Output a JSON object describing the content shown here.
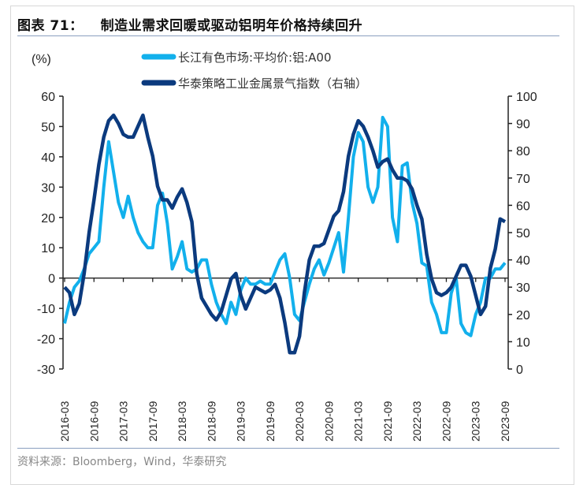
{
  "title": {
    "label": "图表 71：",
    "text": "制造业需求回暖或驱动铝明年价格持续回升"
  },
  "source": "资料来源：Bloomberg，Wind，华泰研究",
  "colors": {
    "light": "#12b0ec",
    "dark": "#0b3a7e",
    "axis": "#222222"
  },
  "chart_data": {
    "type": "line",
    "title": "制造业需求回暖或驱动铝明年价格持续回升",
    "ylabel_left": "(%)",
    "ylim_left": [
      -30,
      60
    ],
    "yticks_left": [
      -30,
      -20,
      -10,
      0,
      10,
      20,
      30,
      40,
      50,
      60
    ],
    "ylim_right": [
      0,
      100
    ],
    "yticks_right": [
      0,
      10,
      20,
      30,
      40,
      50,
      60,
      70,
      80,
      90,
      100
    ],
    "x_start": "2016-03",
    "x_end": "2023-09",
    "x_frequency": "monthly",
    "xtick_labels": [
      "2016-03",
      "2016-09",
      "2017-03",
      "2017-09",
      "2018-03",
      "2018-09",
      "2019-03",
      "2019-09",
      "2020-03",
      "2020-09",
      "2021-03",
      "2021-09",
      "2022-03",
      "2022-09",
      "2023-03",
      "2023-09"
    ],
    "legend_position": "top-center",
    "grid": false,
    "series": [
      {
        "name": "长江有色市场:平均价:铝:A00",
        "axis": "left",
        "color": "#12b0ec",
        "values": [
          -15,
          -8,
          -3,
          -1,
          3,
          8,
          10,
          12,
          30,
          45,
          35,
          25,
          20,
          27,
          20,
          15,
          12,
          10,
          10,
          24,
          28,
          18,
          3,
          7,
          12,
          3,
          2,
          3,
          6,
          6,
          -2,
          -8,
          -12,
          -15,
          -8,
          -12,
          -4,
          0,
          -2,
          -2,
          -1,
          -2,
          -2,
          2,
          6,
          8,
          0,
          -12,
          -14,
          -8,
          -2,
          3,
          6,
          1,
          5,
          10,
          15,
          2,
          20,
          40,
          48,
          45,
          30,
          25,
          30,
          53,
          50,
          20,
          12,
          37,
          38,
          25,
          18,
          5,
          4,
          -8,
          -12,
          -18,
          -18,
          -5,
          0,
          -15,
          -18,
          -19,
          -12,
          -8,
          0,
          0,
          3,
          3,
          5
        ]
      },
      {
        "name": "华泰策略工业金属景气指数（右轴）",
        "axis": "right",
        "color": "#0b3a7e",
        "values": [
          30,
          28,
          20,
          24,
          35,
          50,
          62,
          75,
          85,
          91,
          93,
          90,
          86,
          85,
          85,
          89,
          93,
          85,
          78,
          67,
          62,
          62,
          59,
          63,
          66,
          61,
          54,
          35,
          26,
          23,
          20,
          18,
          21,
          27,
          33,
          35,
          27,
          22,
          26,
          30,
          29,
          28,
          29,
          31,
          26,
          17,
          6,
          6,
          12,
          28,
          40,
          45,
          45,
          46,
          51,
          56,
          58,
          65,
          78,
          86,
          91,
          89,
          85,
          80,
          74,
          76,
          77,
          73,
          70,
          70,
          69,
          66,
          60,
          55,
          42,
          33,
          28,
          27,
          28,
          30,
          34,
          38,
          38,
          34,
          27,
          20,
          23,
          37,
          44,
          55,
          54
        ]
      }
    ]
  }
}
